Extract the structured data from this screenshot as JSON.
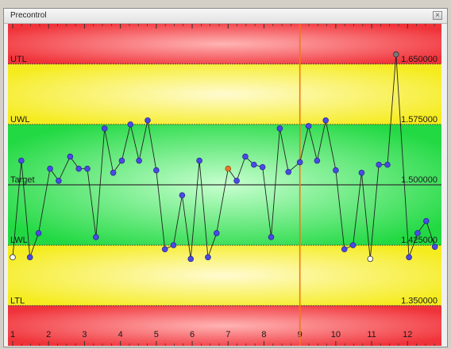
{
  "window": {
    "title": "Precontrol",
    "close_icon": "close-icon"
  },
  "colors": {
    "red_zone": "#f0333a",
    "yellow_zone": "#f5ec20",
    "green_zone": "#22d943",
    "point": "#4a4ae6",
    "highlight_point": "#e07a2a",
    "cursor_line": "#f07a10",
    "line": "#222222"
  },
  "chart_data": {
    "type": "line",
    "title": "",
    "ylim": [
      1.3,
      1.7
    ],
    "zones": [
      {
        "name": "red",
        "from": 1.65,
        "to": 1.7
      },
      {
        "name": "yellow",
        "from": 1.575,
        "to": 1.65
      },
      {
        "name": "green",
        "from": 1.425,
        "to": 1.575
      },
      {
        "name": "yellow",
        "from": 1.35,
        "to": 1.425
      },
      {
        "name": "red",
        "from": 1.3,
        "to": 1.35
      }
    ],
    "limits": [
      {
        "label": "UTL",
        "value": 1.65,
        "value_label": "1.650000"
      },
      {
        "label": "UWL",
        "value": 1.575,
        "value_label": "1.575000"
      },
      {
        "label": "Target",
        "value": 1.5,
        "value_label": "1.500000"
      },
      {
        "label": "LWL",
        "value": 1.425,
        "value_label": "1.425000"
      },
      {
        "label": "LTL",
        "value": 1.35,
        "value_label": "1.350000"
      }
    ],
    "x_ticks": [
      "1",
      "2",
      "3",
      "4",
      "5",
      "6",
      "7",
      "8",
      "9",
      "10",
      "11",
      "12"
    ],
    "xlim": [
      1,
      12.9
    ],
    "cursor_x": 9,
    "points": [
      {
        "x": 1.0,
        "y": 1.41,
        "style": "open"
      },
      {
        "x": 1.24,
        "y": 1.53
      },
      {
        "x": 1.48,
        "y": 1.41
      },
      {
        "x": 1.72,
        "y": 1.44
      },
      {
        "x": 2.04,
        "y": 1.52
      },
      {
        "x": 2.28,
        "y": 1.505
      },
      {
        "x": 2.6,
        "y": 1.535
      },
      {
        "x": 2.84,
        "y": 1.52
      },
      {
        "x": 3.08,
        "y": 1.52
      },
      {
        "x": 3.32,
        "y": 1.435
      },
      {
        "x": 3.56,
        "y": 1.57
      },
      {
        "x": 3.8,
        "y": 1.515
      },
      {
        "x": 4.04,
        "y": 1.53
      },
      {
        "x": 4.28,
        "y": 1.575
      },
      {
        "x": 4.52,
        "y": 1.53
      },
      {
        "x": 4.76,
        "y": 1.58
      },
      {
        "x": 5.0,
        "y": 1.518
      },
      {
        "x": 5.24,
        "y": 1.42
      },
      {
        "x": 5.48,
        "y": 1.425
      },
      {
        "x": 5.72,
        "y": 1.487
      },
      {
        "x": 5.96,
        "y": 1.408
      },
      {
        "x": 6.2,
        "y": 1.53
      },
      {
        "x": 6.44,
        "y": 1.41
      },
      {
        "x": 6.68,
        "y": 1.44
      },
      {
        "x": 7.0,
        "y": 1.52,
        "style": "highlight"
      },
      {
        "x": 7.24,
        "y": 1.505
      },
      {
        "x": 7.48,
        "y": 1.535
      },
      {
        "x": 7.72,
        "y": 1.525
      },
      {
        "x": 7.96,
        "y": 1.522
      },
      {
        "x": 8.2,
        "y": 1.435
      },
      {
        "x": 8.44,
        "y": 1.57
      },
      {
        "x": 8.68,
        "y": 1.516
      },
      {
        "x": 9.0,
        "y": 1.528
      },
      {
        "x": 9.24,
        "y": 1.573
      },
      {
        "x": 9.48,
        "y": 1.53
      },
      {
        "x": 9.72,
        "y": 1.58
      },
      {
        "x": 10.0,
        "y": 1.518
      },
      {
        "x": 10.24,
        "y": 1.42
      },
      {
        "x": 10.48,
        "y": 1.425
      },
      {
        "x": 10.72,
        "y": 1.515
      },
      {
        "x": 10.96,
        "y": 1.408,
        "style": "open"
      },
      {
        "x": 11.2,
        "y": 1.525
      },
      {
        "x": 11.44,
        "y": 1.525
      },
      {
        "x": 11.68,
        "y": 1.662,
        "style": "gray"
      },
      {
        "x": 12.04,
        "y": 1.41
      },
      {
        "x": 12.28,
        "y": 1.44
      },
      {
        "x": 12.52,
        "y": 1.455
      },
      {
        "x": 12.76,
        "y": 1.423
      }
    ]
  }
}
